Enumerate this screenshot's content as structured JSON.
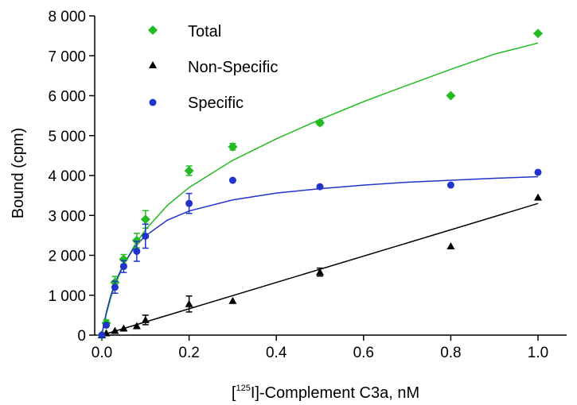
{
  "chart_data": {
    "type": "scatter",
    "xlabel": {
      "prefix": "[",
      "superscript": "125",
      "suffix": "I]-Complement C3a, nM"
    },
    "ylabel": "Bound (cpm)",
    "xlim": [
      0,
      1.0
    ],
    "ylim": [
      0,
      8000
    ],
    "x_ticks": [
      {
        "value": 0.0,
        "label": "0.0"
      },
      {
        "value": 0.2,
        "label": "0.2"
      },
      {
        "value": 0.4,
        "label": "0.4"
      },
      {
        "value": 0.6,
        "label": "0.6"
      },
      {
        "value": 0.8,
        "label": "0.8"
      },
      {
        "value": 1.0,
        "label": "1.0"
      }
    ],
    "y_ticks": [
      {
        "value": 0,
        "label": "0"
      },
      {
        "value": 1000,
        "label": "1 000"
      },
      {
        "value": 2000,
        "label": "2 000"
      },
      {
        "value": 3000,
        "label": "3 000"
      },
      {
        "value": 4000,
        "label": "4 000"
      },
      {
        "value": 5000,
        "label": "5 000"
      },
      {
        "value": 6000,
        "label": "6 000"
      },
      {
        "value": 7000,
        "label": "7 000"
      },
      {
        "value": 8000,
        "label": "8 000"
      }
    ],
    "legend_position": "top-left",
    "grid": false,
    "series": [
      {
        "name": "Total",
        "color": "#22bb22",
        "marker": "diamond",
        "points": [
          {
            "x": 0.0,
            "y": 0,
            "err": 0
          },
          {
            "x": 0.01,
            "y": 300,
            "err": 80
          },
          {
            "x": 0.03,
            "y": 1320,
            "err": 150
          },
          {
            "x": 0.05,
            "y": 1900,
            "err": 120
          },
          {
            "x": 0.08,
            "y": 2370,
            "err": 180
          },
          {
            "x": 0.1,
            "y": 2900,
            "err": 220
          },
          {
            "x": 0.2,
            "y": 4120,
            "err": 120
          },
          {
            "x": 0.3,
            "y": 4720,
            "err": 80
          },
          {
            "x": 0.5,
            "y": 5320,
            "err": 60
          },
          {
            "x": 0.8,
            "y": 6000,
            "err": 0
          },
          {
            "x": 1.0,
            "y": 7560,
            "err": 0
          }
        ],
        "fit": [
          {
            "x": 0.0,
            "y": 0
          },
          {
            "x": 0.005,
            "y": 280
          },
          {
            "x": 0.01,
            "y": 520
          },
          {
            "x": 0.02,
            "y": 920
          },
          {
            "x": 0.03,
            "y": 1250
          },
          {
            "x": 0.05,
            "y": 1760
          },
          {
            "x": 0.075,
            "y": 2250
          },
          {
            "x": 0.1,
            "y": 2640
          },
          {
            "x": 0.15,
            "y": 3250
          },
          {
            "x": 0.2,
            "y": 3700
          },
          {
            "x": 0.3,
            "y": 4380
          },
          {
            "x": 0.4,
            "y": 4920
          },
          {
            "x": 0.5,
            "y": 5400
          },
          {
            "x": 0.6,
            "y": 5850
          },
          {
            "x": 0.7,
            "y": 6260
          },
          {
            "x": 0.8,
            "y": 6660
          },
          {
            "x": 0.9,
            "y": 7040
          },
          {
            "x": 1.0,
            "y": 7320
          }
        ]
      },
      {
        "name": "Non-Specific",
        "color": "#000000",
        "marker": "triangle",
        "points": [
          {
            "x": 0.0,
            "y": 0,
            "err": 0
          },
          {
            "x": 0.01,
            "y": 50,
            "err": 0
          },
          {
            "x": 0.03,
            "y": 110,
            "err": 0
          },
          {
            "x": 0.05,
            "y": 170,
            "err": 0
          },
          {
            "x": 0.08,
            "y": 230,
            "err": 0
          },
          {
            "x": 0.1,
            "y": 380,
            "err": 120
          },
          {
            "x": 0.2,
            "y": 780,
            "err": 200
          },
          {
            "x": 0.3,
            "y": 860,
            "err": 0
          },
          {
            "x": 0.5,
            "y": 1580,
            "err": 100
          },
          {
            "x": 0.8,
            "y": 2230,
            "err": 0
          },
          {
            "x": 1.0,
            "y": 3450,
            "err": 0
          }
        ],
        "fit": [
          {
            "x": 0.0,
            "y": 0
          },
          {
            "x": 1.0,
            "y": 3300
          }
        ]
      },
      {
        "name": "Specific",
        "color": "#2233cc",
        "marker": "circle",
        "points": [
          {
            "x": 0.0,
            "y": 0,
            "err": 0
          },
          {
            "x": 0.01,
            "y": 250,
            "err": 0
          },
          {
            "x": 0.03,
            "y": 1200,
            "err": 150
          },
          {
            "x": 0.05,
            "y": 1720,
            "err": 150
          },
          {
            "x": 0.08,
            "y": 2100,
            "err": 250
          },
          {
            "x": 0.1,
            "y": 2480,
            "err": 300
          },
          {
            "x": 0.2,
            "y": 3300,
            "err": 250
          },
          {
            "x": 0.3,
            "y": 3880,
            "err": 0
          },
          {
            "x": 0.5,
            "y": 3720,
            "err": 0
          },
          {
            "x": 0.8,
            "y": 3760,
            "err": 0
          },
          {
            "x": 1.0,
            "y": 4080,
            "err": 0
          }
        ],
        "fit": [
          {
            "x": 0.0,
            "y": 0
          },
          {
            "x": 0.005,
            "y": 300
          },
          {
            "x": 0.01,
            "y": 560
          },
          {
            "x": 0.02,
            "y": 980
          },
          {
            "x": 0.03,
            "y": 1310
          },
          {
            "x": 0.05,
            "y": 1780
          },
          {
            "x": 0.075,
            "y": 2200
          },
          {
            "x": 0.1,
            "y": 2490
          },
          {
            "x": 0.15,
            "y": 2880
          },
          {
            "x": 0.2,
            "y": 3110
          },
          {
            "x": 0.3,
            "y": 3390
          },
          {
            "x": 0.4,
            "y": 3560
          },
          {
            "x": 0.5,
            "y": 3670
          },
          {
            "x": 0.6,
            "y": 3760
          },
          {
            "x": 0.7,
            "y": 3830
          },
          {
            "x": 0.8,
            "y": 3880
          },
          {
            "x": 0.9,
            "y": 3930
          },
          {
            "x": 1.0,
            "y": 3970
          }
        ]
      }
    ]
  }
}
